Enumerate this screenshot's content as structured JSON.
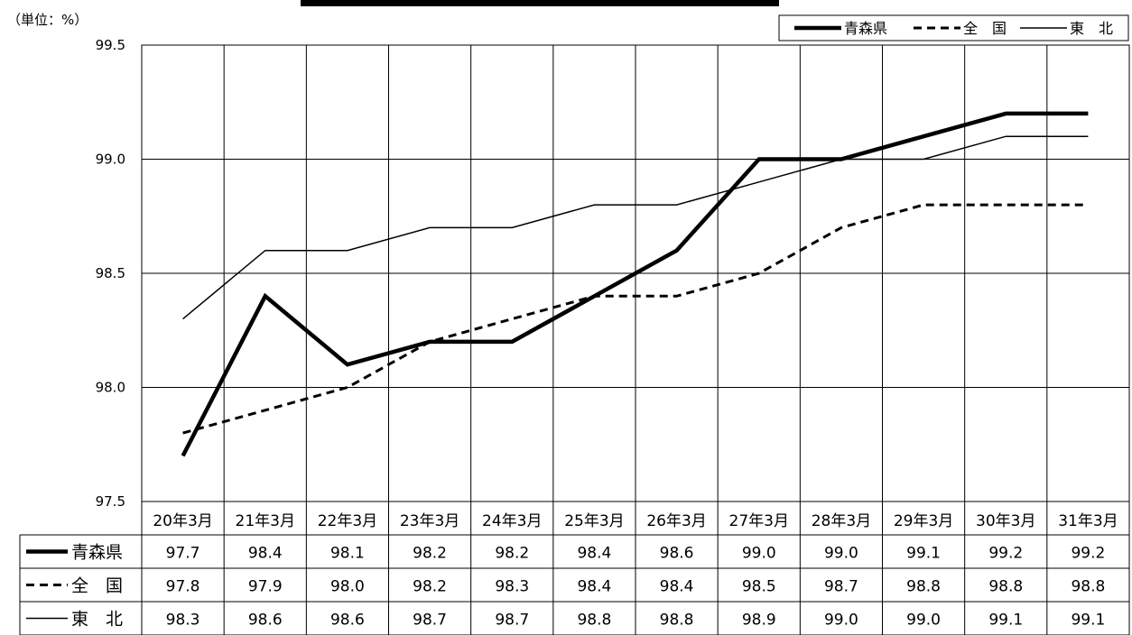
{
  "unit": "（単位：%）",
  "chart_data": {
    "type": "line",
    "categories": [
      "20年3月",
      "21年3月",
      "22年3月",
      "23年3月",
      "24年3月",
      "25年3月",
      "26年3月",
      "27年3月",
      "28年3月",
      "29年3月",
      "30年3月",
      "31年3月"
    ],
    "series": [
      {
        "name": "青森県",
        "line_style": "solid-thick",
        "color": "#000000",
        "values": [
          97.7,
          98.4,
          98.1,
          98.2,
          98.2,
          98.4,
          98.6,
          99.0,
          99.0,
          99.1,
          99.2,
          99.2
        ]
      },
      {
        "name": "全　国",
        "line_style": "dashed",
        "color": "#000000",
        "values": [
          97.8,
          97.9,
          98.0,
          98.2,
          98.3,
          98.4,
          98.4,
          98.5,
          98.7,
          98.8,
          98.8,
          98.8
        ]
      },
      {
        "name": "東　北",
        "line_style": "solid-thin",
        "color": "#000000",
        "values": [
          98.3,
          98.6,
          98.6,
          98.7,
          98.7,
          98.8,
          98.8,
          98.9,
          99.0,
          99.0,
          99.1,
          99.1
        ]
      }
    ],
    "ylim": [
      97.5,
      99.5
    ],
    "yticks": [
      "97.5",
      "98.0",
      "98.5",
      "99.0",
      "99.5"
    ],
    "grid": true,
    "legend_position": "top-right",
    "data_table": true
  }
}
